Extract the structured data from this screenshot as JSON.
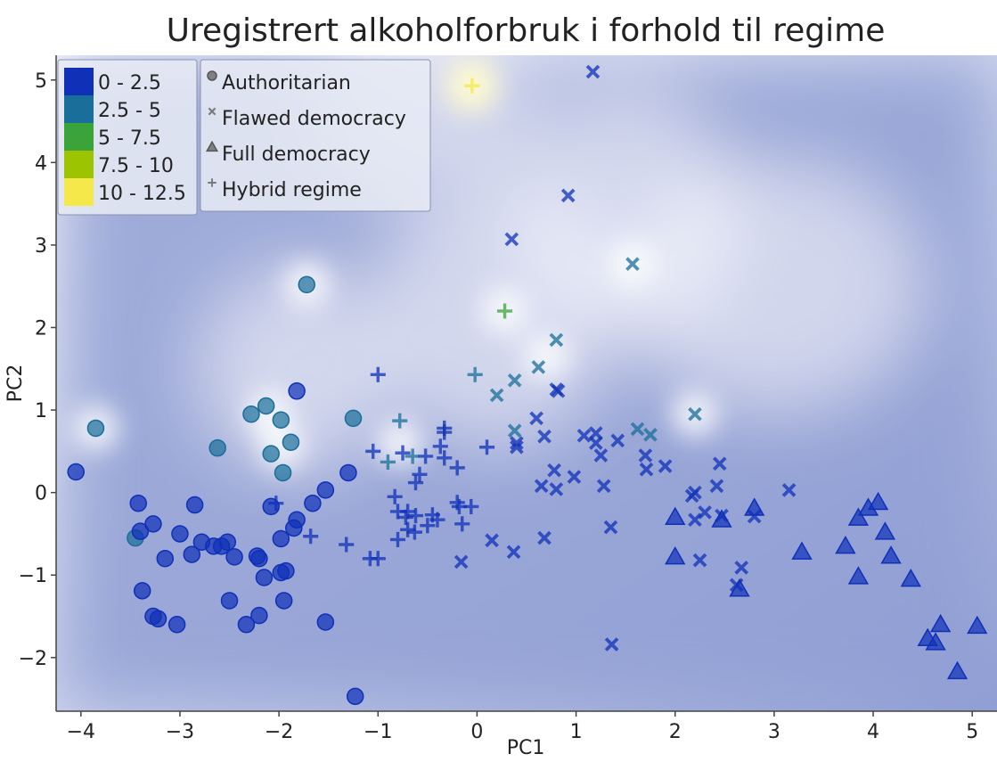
{
  "chart_data": {
    "type": "scatter",
    "title": "Uregistrert alkoholforbruk i forhold til regime",
    "xlabel": "PC1",
    "ylabel": "PC2",
    "xlim": [
      -4.25,
      5.25
    ],
    "ylim": [
      -2.65,
      5.3
    ],
    "x_ticks": [
      -4,
      -3,
      -2,
      -1,
      0,
      1,
      2,
      3,
      4,
      5
    ],
    "y_ticks": [
      -2,
      -1,
      0,
      1,
      2,
      3,
      4,
      5
    ],
    "grid": false,
    "color_legend": {
      "placement": "top-left",
      "entries": [
        {
          "label": "0 - 2.5",
          "color": "#1030b8"
        },
        {
          "label": "2.5 - 5",
          "color": "#1a6e9a"
        },
        {
          "label": "5 - 7.5",
          "color": "#3aa33a"
        },
        {
          "label": "7.5 - 10",
          "color": "#9cc400"
        },
        {
          "label": "10 - 12.5",
          "color": "#f4e84a"
        }
      ]
    },
    "marker_legend": {
      "placement": "top-left",
      "entries": [
        {
          "label": "Authoritarian",
          "marker": "circle"
        },
        {
          "label": "Flawed democracy",
          "marker": "x"
        },
        {
          "label": "Full democracy",
          "marker": "triangle"
        },
        {
          "label": "Hybrid regime",
          "marker": "plus"
        }
      ]
    },
    "background_colors": {
      "low": "#8f9ed4",
      "high": "#ffffff"
    },
    "series": [
      {
        "name": "Authoritarian",
        "marker": "circle",
        "points": [
          {
            "x": -4.05,
            "y": 0.25,
            "c": 0
          },
          {
            "x": -3.85,
            "y": 0.78,
            "c": 1
          },
          {
            "x": -3.45,
            "y": -0.55,
            "c": 1
          },
          {
            "x": -3.42,
            "y": -0.13,
            "c": 0
          },
          {
            "x": -3.4,
            "y": -0.47,
            "c": 0
          },
          {
            "x": -3.38,
            "y": -1.19,
            "c": 0
          },
          {
            "x": -3.27,
            "y": -0.38,
            "c": 0
          },
          {
            "x": -3.27,
            "y": -1.5,
            "c": 0
          },
          {
            "x": -3.22,
            "y": -1.53,
            "c": 0
          },
          {
            "x": -3.15,
            "y": -0.8,
            "c": 0
          },
          {
            "x": -3.03,
            "y": -1.6,
            "c": 0
          },
          {
            "x": -3.0,
            "y": -0.5,
            "c": 0
          },
          {
            "x": -2.88,
            "y": -0.75,
            "c": 0
          },
          {
            "x": -2.85,
            "y": -0.15,
            "c": 0
          },
          {
            "x": -2.78,
            "y": -0.6,
            "c": 0
          },
          {
            "x": -2.66,
            "y": -0.65,
            "c": 0
          },
          {
            "x": -2.62,
            "y": 0.54,
            "c": 1
          },
          {
            "x": -2.58,
            "y": -0.65,
            "c": 0
          },
          {
            "x": -2.52,
            "y": -0.6,
            "c": 0
          },
          {
            "x": -2.5,
            "y": -1.31,
            "c": 0
          },
          {
            "x": -2.45,
            "y": -0.78,
            "c": 0
          },
          {
            "x": -2.33,
            "y": -1.6,
            "c": 0
          },
          {
            "x": -2.28,
            "y": 0.95,
            "c": 1
          },
          {
            "x": -2.22,
            "y": -0.77,
            "c": 0
          },
          {
            "x": -2.2,
            "y": -1.49,
            "c": 0
          },
          {
            "x": -2.2,
            "y": -0.8,
            "c": 0
          },
          {
            "x": -2.15,
            "y": -1.03,
            "c": 0
          },
          {
            "x": -2.13,
            "y": 1.05,
            "c": 1
          },
          {
            "x": -2.08,
            "y": 0.47,
            "c": 1
          },
          {
            "x": -2.08,
            "y": -0.17,
            "c": 0
          },
          {
            "x": -1.98,
            "y": 0.88,
            "c": 1
          },
          {
            "x": -1.98,
            "y": -0.56,
            "c": 0
          },
          {
            "x": -1.98,
            "y": -0.97,
            "c": 0
          },
          {
            "x": -1.96,
            "y": 0.24,
            "c": 1
          },
          {
            "x": -1.95,
            "y": -1.31,
            "c": 0
          },
          {
            "x": -1.93,
            "y": -0.95,
            "c": 0
          },
          {
            "x": -1.88,
            "y": 0.61,
            "c": 1
          },
          {
            "x": -1.85,
            "y": -0.43,
            "c": 0
          },
          {
            "x": -1.82,
            "y": -0.33,
            "c": 0
          },
          {
            "x": -1.82,
            "y": 1.23,
            "c": 0
          },
          {
            "x": -1.72,
            "y": 2.52,
            "c": 1
          },
          {
            "x": -1.66,
            "y": -0.13,
            "c": 0
          },
          {
            "x": -1.53,
            "y": 0.03,
            "c": 0
          },
          {
            "x": -1.53,
            "y": -1.57,
            "c": 0
          },
          {
            "x": -1.3,
            "y": 0.24,
            "c": 0
          },
          {
            "x": -1.25,
            "y": 0.9,
            "c": 1
          },
          {
            "x": -1.23,
            "y": -2.47,
            "c": 0
          }
        ]
      },
      {
        "name": "Flawed democracy",
        "marker": "x",
        "points": [
          {
            "x": 1.17,
            "y": 5.1,
            "c": 0
          },
          {
            "x": 0.92,
            "y": 3.6,
            "c": 0
          },
          {
            "x": 0.35,
            "y": 3.07,
            "c": 0
          },
          {
            "x": 1.57,
            "y": 2.77,
            "c": 1
          },
          {
            "x": 0.8,
            "y": 1.85,
            "c": 1
          },
          {
            "x": 0.62,
            "y": 1.52,
            "c": 1
          },
          {
            "x": 0.38,
            "y": 1.36,
            "c": 1
          },
          {
            "x": 0.8,
            "y": 1.25,
            "c": 0
          },
          {
            "x": 0.82,
            "y": 1.23,
            "c": 0
          },
          {
            "x": 0.2,
            "y": 1.18,
            "c": 1
          },
          {
            "x": 2.2,
            "y": 0.95,
            "c": 1
          },
          {
            "x": 0.6,
            "y": 0.9,
            "c": 0
          },
          {
            "x": 1.62,
            "y": 0.77,
            "c": 1
          },
          {
            "x": 0.38,
            "y": 0.75,
            "c": 1
          },
          {
            "x": 1.2,
            "y": 0.72,
            "c": 0
          },
          {
            "x": 1.75,
            "y": 0.7,
            "c": 1
          },
          {
            "x": 1.08,
            "y": 0.69,
            "c": 0
          },
          {
            "x": 0.68,
            "y": 0.68,
            "c": 0
          },
          {
            "x": 1.42,
            "y": 0.63,
            "c": 0
          },
          {
            "x": 0.4,
            "y": 0.6,
            "c": 0
          },
          {
            "x": 1.2,
            "y": 0.6,
            "c": 0
          },
          {
            "x": 0.4,
            "y": 0.55,
            "c": 0
          },
          {
            "x": 1.25,
            "y": 0.45,
            "c": 0
          },
          {
            "x": 1.7,
            "y": 0.45,
            "c": 0
          },
          {
            "x": 2.45,
            "y": 0.35,
            "c": 0
          },
          {
            "x": 1.9,
            "y": 0.32,
            "c": 0
          },
          {
            "x": 1.71,
            "y": 0.28,
            "c": 0
          },
          {
            "x": 0.78,
            "y": 0.27,
            "c": 0
          },
          {
            "x": 0.98,
            "y": 0.19,
            "c": 0
          },
          {
            "x": 0.65,
            "y": 0.08,
            "c": 0
          },
          {
            "x": 1.28,
            "y": 0.08,
            "c": 0
          },
          {
            "x": 2.42,
            "y": 0.08,
            "c": 0
          },
          {
            "x": 0.8,
            "y": 0.04,
            "c": 0
          },
          {
            "x": 3.15,
            "y": 0.03,
            "c": 0
          },
          {
            "x": 2.2,
            "y": 0.0,
            "c": 0
          },
          {
            "x": 2.17,
            "y": -0.04,
            "c": 0
          },
          {
            "x": 2.3,
            "y": -0.24,
            "c": 0
          },
          {
            "x": 2.47,
            "y": -0.28,
            "c": 0
          },
          {
            "x": 2.8,
            "y": -0.29,
            "c": 0
          },
          {
            "x": 2.2,
            "y": -0.33,
            "c": 0
          },
          {
            "x": 1.35,
            "y": -0.42,
            "c": 0
          },
          {
            "x": 0.68,
            "y": -0.55,
            "c": 0
          },
          {
            "x": 0.15,
            "y": -0.58,
            "c": 0
          },
          {
            "x": 0.37,
            "y": -0.72,
            "c": 0
          },
          {
            "x": 2.25,
            "y": -0.82,
            "c": 0
          },
          {
            "x": -0.16,
            "y": -0.84,
            "c": 0
          },
          {
            "x": 2.67,
            "y": -0.91,
            "c": 0
          },
          {
            "x": 2.62,
            "y": -1.12,
            "c": 0
          },
          {
            "x": 1.36,
            "y": -1.84,
            "c": 0
          }
        ]
      },
      {
        "name": "Full democracy",
        "marker": "triangle",
        "points": [
          {
            "x": 2.0,
            "y": -0.3,
            "c": 0
          },
          {
            "x": 2.0,
            "y": -0.78,
            "c": 0
          },
          {
            "x": 2.47,
            "y": -0.33,
            "c": 0
          },
          {
            "x": 2.8,
            "y": -0.19,
            "c": 0
          },
          {
            "x": 2.65,
            "y": -1.17,
            "c": 0
          },
          {
            "x": 3.28,
            "y": -0.72,
            "c": 0
          },
          {
            "x": 3.72,
            "y": -0.65,
            "c": 0
          },
          {
            "x": 3.85,
            "y": -0.31,
            "c": 0
          },
          {
            "x": 3.85,
            "y": -1.02,
            "c": 0
          },
          {
            "x": 3.95,
            "y": -0.19,
            "c": 0
          },
          {
            "x": 4.05,
            "y": -0.12,
            "c": 0
          },
          {
            "x": 4.12,
            "y": -0.48,
            "c": 0
          },
          {
            "x": 4.18,
            "y": -0.77,
            "c": 0
          },
          {
            "x": 4.38,
            "y": -1.05,
            "c": 0
          },
          {
            "x": 4.55,
            "y": -1.77,
            "c": 0
          },
          {
            "x": 4.63,
            "y": -1.82,
            "c": 0
          },
          {
            "x": 4.68,
            "y": -1.6,
            "c": 0
          },
          {
            "x": 4.85,
            "y": -2.17,
            "c": 0
          },
          {
            "x": 5.05,
            "y": -1.62,
            "c": 0
          }
        ]
      },
      {
        "name": "Hybrid regime",
        "marker": "plus",
        "points": [
          {
            "x": -0.05,
            "y": 4.93,
            "c": 4
          },
          {
            "x": 0.28,
            "y": 2.2,
            "c": 2
          },
          {
            "x": -1.0,
            "y": 1.43,
            "c": 0
          },
          {
            "x": -0.02,
            "y": 1.43,
            "c": 1
          },
          {
            "x": -0.78,
            "y": 0.87,
            "c": 1
          },
          {
            "x": -0.33,
            "y": 0.78,
            "c": 0
          },
          {
            "x": -0.33,
            "y": 0.73,
            "c": 0
          },
          {
            "x": -0.37,
            "y": 0.56,
            "c": 0
          },
          {
            "x": 0.1,
            "y": 0.55,
            "c": 0
          },
          {
            "x": -1.05,
            "y": 0.5,
            "c": 0
          },
          {
            "x": -0.75,
            "y": 0.48,
            "c": 0
          },
          {
            "x": -0.52,
            "y": 0.44,
            "c": 0
          },
          {
            "x": -0.65,
            "y": 0.44,
            "c": 1
          },
          {
            "x": -0.33,
            "y": 0.42,
            "c": 0
          },
          {
            "x": -0.9,
            "y": 0.37,
            "c": 1
          },
          {
            "x": -0.2,
            "y": 0.3,
            "c": 0
          },
          {
            "x": -0.58,
            "y": 0.22,
            "c": 0
          },
          {
            "x": -0.62,
            "y": 0.12,
            "c": 0
          },
          {
            "x": -0.83,
            "y": -0.05,
            "c": 0
          },
          {
            "x": -0.2,
            "y": -0.12,
            "c": 0
          },
          {
            "x": -0.18,
            "y": -0.17,
            "c": 0
          },
          {
            "x": -0.06,
            "y": -0.17,
            "c": 0
          },
          {
            "x": -2.03,
            "y": -0.13,
            "c": 0
          },
          {
            "x": -0.8,
            "y": -0.23,
            "c": 0
          },
          {
            "x": -0.7,
            "y": -0.23,
            "c": 0
          },
          {
            "x": -0.72,
            "y": -0.3,
            "c": 0
          },
          {
            "x": -0.62,
            "y": -0.28,
            "c": 0
          },
          {
            "x": -0.45,
            "y": -0.27,
            "c": 0
          },
          {
            "x": -0.4,
            "y": -0.33,
            "c": 0
          },
          {
            "x": -0.5,
            "y": -0.4,
            "c": 0
          },
          {
            "x": -0.15,
            "y": -0.38,
            "c": 0
          },
          {
            "x": -0.7,
            "y": -0.45,
            "c": 0
          },
          {
            "x": -0.63,
            "y": -0.48,
            "c": 0
          },
          {
            "x": -1.68,
            "y": -0.53,
            "c": 0
          },
          {
            "x": -0.8,
            "y": -0.57,
            "c": 0
          },
          {
            "x": -1.32,
            "y": -0.63,
            "c": 0
          },
          {
            "x": -1.08,
            "y": -0.8,
            "c": 0
          },
          {
            "x": -1.0,
            "y": -0.8,
            "c": 0
          }
        ]
      }
    ],
    "density_hotspots": [
      {
        "x": -0.05,
        "y": 4.93,
        "c": 4
      },
      {
        "x": 0.28,
        "y": 2.2,
        "c": 2
      },
      {
        "x": -1.72,
        "y": 2.52,
        "c": 1
      },
      {
        "x": -2.1,
        "y": 0.95,
        "c": 1
      },
      {
        "x": -1.97,
        "y": 0.55,
        "c": 1
      },
      {
        "x": 1.57,
        "y": 2.77,
        "c": 1
      },
      {
        "x": 0.7,
        "y": 1.65,
        "c": 1
      },
      {
        "x": 2.2,
        "y": 0.95,
        "c": 1
      },
      {
        "x": -0.78,
        "y": 0.6,
        "c": 1
      },
      {
        "x": -3.85,
        "y": 0.78,
        "c": 1
      }
    ]
  }
}
